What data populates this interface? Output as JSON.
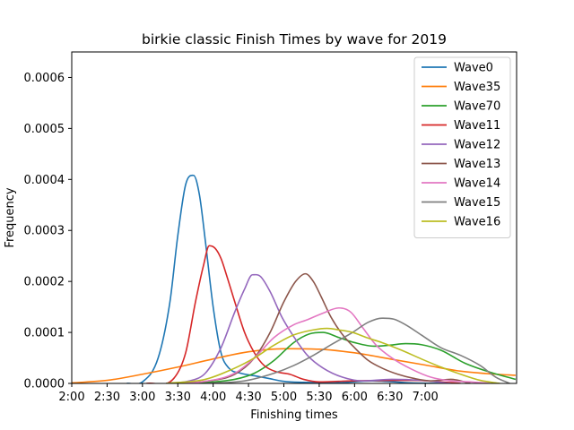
{
  "chart_data": {
    "type": "line",
    "title": "birkie classic Finish Times by wave for 2019",
    "xlabel": "Finishing times",
    "ylabel": "Frequency",
    "x_unit": "seconds",
    "xlim": [
      7200,
      29850
    ],
    "ylim": [
      0,
      0.00065
    ],
    "x_ticks": [
      {
        "value": 7200,
        "label": "2:00"
      },
      {
        "value": 9000,
        "label": "2:30"
      },
      {
        "value": 10800,
        "label": "3:00"
      },
      {
        "value": 12600,
        "label": "3:30"
      },
      {
        "value": 14400,
        "label": "4:00"
      },
      {
        "value": 16200,
        "label": "4:30"
      },
      {
        "value": 18000,
        "label": "5:00"
      },
      {
        "value": 19800,
        "label": "5:30"
      },
      {
        "value": 21600,
        "label": "6:00"
      },
      {
        "value": 23400,
        "label": "6:30"
      },
      {
        "value": 25200,
        "label": "7:00"
      }
    ],
    "y_ticks": [
      {
        "value": 0,
        "label": "0.0000"
      },
      {
        "value": 0.0001,
        "label": "0.0001"
      },
      {
        "value": 0.0002,
        "label": "0.0002"
      },
      {
        "value": 0.0003,
        "label": "0.0003"
      },
      {
        "value": 0.0004,
        "label": "0.0004"
      },
      {
        "value": 0.0005,
        "label": "0.0005"
      },
      {
        "value": 0.0006,
        "label": "0.0006"
      }
    ],
    "grid": false,
    "legend_position": "top-right",
    "series": [
      {
        "name": "Wave0",
        "color": "#1f77b4",
        "x": [
          10000,
          10800,
          11600,
          12200,
          12600,
          13000,
          13400,
          13700,
          14000,
          14400,
          14800,
          15200,
          15800,
          16500,
          17200,
          18000,
          19000,
          20500,
          22500,
          24500,
          26500
        ],
        "y": [
          0,
          3e-06,
          5e-05,
          0.00016,
          0.00029,
          0.00039,
          0.000408,
          0.00037,
          0.00028,
          0.00015,
          6e-05,
          3e-05,
          2e-05,
          1.5e-05,
          1e-05,
          4e-06,
          2e-06,
          1e-06,
          5e-06,
          1e-06,
          0
        ]
      },
      {
        "name": "Wave35",
        "color": "#ff7f0e",
        "x": [
          7200,
          9000,
          10800,
          12600,
          14400,
          16200,
          18000,
          19800,
          21600,
          23400,
          25200,
          27000,
          28800,
          29800
        ],
        "y": [
          1e-06,
          6e-06,
          1.8e-05,
          3.2e-05,
          4.8e-05,
          6.2e-05,
          6.8e-05,
          6.7e-05,
          6e-05,
          4.8e-05,
          3.6e-05,
          2.4e-05,
          1.8e-05,
          1.6e-05
        ]
      },
      {
        "name": "Wave70",
        "color": "#2ca02c",
        "x": [
          12000,
          14000,
          15500,
          16500,
          17500,
          18500,
          19300,
          20000,
          20800,
          21600,
          22600,
          23400,
          24200,
          25000,
          26000,
          27200,
          28500,
          29800
        ],
        "y": [
          0,
          2e-06,
          8e-06,
          2e-05,
          4.5e-05,
          8e-05,
          9.7e-05,
          0.0001,
          9e-05,
          8e-05,
          7.3e-05,
          7.5e-05,
          7.8e-05,
          7.6e-05,
          6.5e-05,
          4e-05,
          2.2e-05,
          8e-06
        ]
      },
      {
        "name": "Wave11",
        "color": "#d62728",
        "x": [
          11000,
          12400,
          13000,
          13500,
          13900,
          14200,
          14500,
          14800,
          15100,
          15500,
          16000,
          16500,
          17000,
          17600,
          18300,
          19000,
          19800,
          21500,
          24500,
          27000
        ],
        "y": [
          0,
          1e-05,
          6e-05,
          0.00016,
          0.00023,
          0.00027,
          0.000265,
          0.000245,
          0.00021,
          0.00016,
          0.0001,
          6e-05,
          3.5e-05,
          2.3e-05,
          1.8e-05,
          8e-06,
          3e-06,
          5e-06,
          6e-06,
          0
        ]
      },
      {
        "name": "Wave12",
        "color": "#9467bd",
        "x": [
          12000,
          13200,
          14000,
          14800,
          15500,
          16000,
          16400,
          16800,
          17300,
          17900,
          18500,
          19200,
          20000,
          21000,
          22000,
          23500,
          25000,
          26500
        ],
        "y": [
          0,
          5e-06,
          2e-05,
          7e-05,
          0.00014,
          0.000185,
          0.000213,
          0.00021,
          0.00018,
          0.00013,
          9.2e-05,
          5.5e-05,
          3e-05,
          1.2e-05,
          5e-06,
          8e-06,
          6e-06,
          0
        ]
      },
      {
        "name": "Wave13",
        "color": "#8c564b",
        "x": [
          12500,
          14000,
          15500,
          16500,
          17300,
          18000,
          18600,
          19100,
          19500,
          19900,
          20400,
          21000,
          21600,
          22300,
          23000,
          23800,
          24600,
          25500,
          26500,
          27500
        ],
        "y": [
          0,
          4e-06,
          1.8e-05,
          5e-05,
          0.0001,
          0.00016,
          0.0002,
          0.000215,
          0.0002,
          0.00017,
          0.00013,
          9.5e-05,
          7e-05,
          4.5e-05,
          3e-05,
          1.8e-05,
          1e-05,
          5e-06,
          8e-06,
          0
        ]
      },
      {
        "name": "Wave14",
        "color": "#e377c2",
        "x": [
          12500,
          14000,
          15500,
          16500,
          17500,
          18500,
          19200,
          20000,
          20800,
          21400,
          22000,
          22700,
          23500,
          24500,
          25500,
          26500,
          27500,
          28500
        ],
        "y": [
          0,
          4e-06,
          2e-05,
          5e-05,
          9e-05,
          0.000115,
          0.000125,
          0.000138,
          0.000148,
          0.00014,
          0.00011,
          7.5e-05,
          5e-05,
          2.8e-05,
          1.2e-05,
          5e-06,
          3e-06,
          0
        ]
      },
      {
        "name": "Wave15",
        "color": "#7f7f7f",
        "x": [
          14000,
          16000,
          17500,
          18500,
          19500,
          20500,
          21500,
          22300,
          23000,
          23600,
          24200,
          25000,
          26000,
          27000,
          28000,
          28800,
          29500
        ],
        "y": [
          0,
          5e-06,
          2e-05,
          3.5e-05,
          5.5e-05,
          7.8e-05,
          0.0001,
          0.00012,
          0.000128,
          0.000126,
          0.000115,
          9.5e-05,
          7e-05,
          5.5e-05,
          3.5e-05,
          1.2e-05,
          0
        ]
      },
      {
        "name": "Wave16",
        "color": "#bcbd22",
        "x": [
          12000,
          14000,
          15500,
          16500,
          17500,
          18500,
          19500,
          20200,
          20800,
          21500,
          22200,
          23000,
          24000,
          25000,
          26000,
          27000,
          28000,
          29000
        ],
        "y": [
          0,
          8e-06,
          3e-05,
          5e-05,
          7.5e-05,
          9.5e-05,
          0.000105,
          0.000108,
          0.000105,
          0.0001,
          9e-05,
          8e-05,
          6.5e-05,
          4.8e-05,
          3.2e-05,
          1.8e-05,
          6e-06,
          0
        ]
      }
    ]
  }
}
